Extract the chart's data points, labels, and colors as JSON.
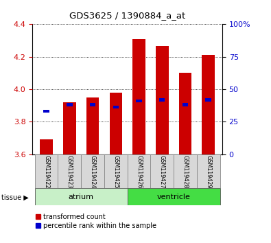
{
  "title": "GDS3625 / 1390884_a_at",
  "samples": [
    "GSM119422",
    "GSM119423",
    "GSM119424",
    "GSM119425",
    "GSM119426",
    "GSM119427",
    "GSM119428",
    "GSM119429"
  ],
  "red_values": [
    3.69,
    3.92,
    3.95,
    3.98,
    4.31,
    4.265,
    4.1,
    4.21
  ],
  "blue_values": [
    3.865,
    3.905,
    3.905,
    3.89,
    3.93,
    3.935,
    3.905,
    3.935
  ],
  "ylim_left": [
    3.6,
    4.4
  ],
  "ylim_right": [
    0,
    100
  ],
  "yticks_left": [
    3.6,
    3.8,
    4.0,
    4.2,
    4.4
  ],
  "yticks_right": [
    0,
    25,
    50,
    75,
    100
  ],
  "ytick_right_labels": [
    "0",
    "25",
    "50",
    "75",
    "100%"
  ],
  "groups": [
    {
      "label": "atrium",
      "start": 0,
      "end": 3,
      "color": "#c8f0c8"
    },
    {
      "label": "ventricle",
      "start": 4,
      "end": 7,
      "color": "#44dd44"
    }
  ],
  "tissue_label": "tissue",
  "red_color": "#cc0000",
  "blue_color": "#0000cc",
  "bar_width": 0.55,
  "legend_red": "transformed count",
  "legend_blue": "percentile rank within the sample",
  "background_color": "#ffffff",
  "plot_bg": "#ffffff",
  "tick_label_color_left": "#cc0000",
  "tick_label_color_right": "#0000cc"
}
